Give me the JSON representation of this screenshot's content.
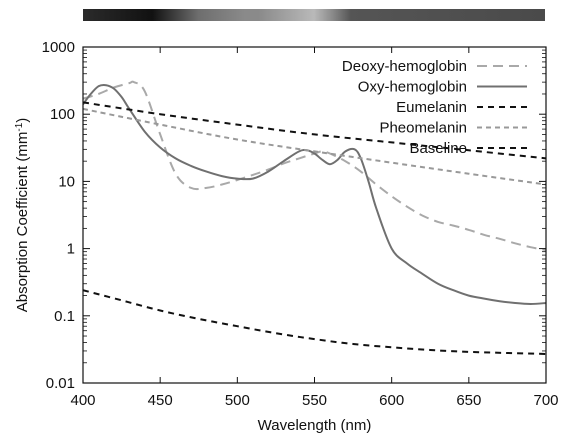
{
  "chart_data": {
    "type": "line",
    "xlabel": "Wavelength (nm)",
    "ylabel": "Absorption Coefficient (mm",
    "ylabel_superscript": "-1",
    "ylabel_suffix": ")",
    "xlim": [
      400,
      700
    ],
    "ylim": [
      0.01,
      1000
    ],
    "yscale": "log",
    "xticks": [
      "400",
      "450",
      "500",
      "550",
      "600",
      "650",
      "700"
    ],
    "yticks": [
      "0.01",
      "0.1",
      "1",
      "10",
      "100",
      "1000"
    ],
    "legend_position": "top-right",
    "grid": false,
    "spectrum_bar": {
      "description_colors": [
        "#2b2b2b",
        "#111111",
        "#6e6e6e",
        "#8a8a8a",
        "#b9b9b9",
        "#555555",
        "#4a4a4a"
      ]
    },
    "series": [
      {
        "name": "Deoxy-hemoglobin",
        "color": "#a9a9a9",
        "dash": "10,6",
        "width": 2,
        "x": [
          400,
          410,
          420,
          430,
          433,
          440,
          450,
          460,
          470,
          480,
          490,
          500,
          510,
          520,
          530,
          540,
          550,
          555,
          560,
          570,
          580,
          590,
          600,
          610,
          620,
          630,
          640,
          650,
          660,
          670,
          680,
          690,
          700
        ],
        "y": [
          170,
          200,
          250,
          290,
          300,
          220,
          50,
          13,
          8,
          8,
          9,
          10.5,
          12.5,
          15,
          18.5,
          22,
          26,
          28,
          26,
          20,
          14,
          9,
          6,
          4.2,
          3.1,
          2.5,
          2.2,
          1.9,
          1.6,
          1.4,
          1.2,
          1.05,
          0.95
        ]
      },
      {
        "name": "Oxy-hemoglobin",
        "color": "#707070",
        "dash": "",
        "width": 2,
        "x": [
          400,
          405,
          410,
          415,
          420,
          425,
          430,
          440,
          450,
          460,
          470,
          480,
          490,
          500,
          510,
          520,
          530,
          540,
          545,
          550,
          555,
          560,
          565,
          570,
          576,
          580,
          585,
          590,
          600,
          610,
          620,
          630,
          640,
          650,
          660,
          670,
          680,
          690,
          700
        ],
        "y": [
          140,
          200,
          260,
          270,
          240,
          180,
          120,
          55,
          32,
          22,
          17,
          14,
          12,
          11,
          11,
          14,
          20,
          28,
          29,
          26,
          21,
          18,
          21,
          28,
          30,
          22,
          10,
          4,
          1.0,
          0.6,
          0.42,
          0.3,
          0.24,
          0.2,
          0.18,
          0.165,
          0.155,
          0.15,
          0.155
        ]
      },
      {
        "name": "Eumelanin",
        "color": "#111111",
        "dash": "6,5",
        "width": 2,
        "x": [
          400,
          450,
          500,
          550,
          600,
          650,
          700
        ],
        "y": [
          150,
          100,
          70,
          50,
          38,
          29,
          22
        ]
      },
      {
        "name": "Pheomelanin",
        "color": "#999999",
        "dash": "5,4",
        "width": 2,
        "x": [
          400,
          450,
          500,
          550,
          600,
          650,
          700
        ],
        "y": [
          120,
          70,
          42,
          28,
          19,
          13,
          9
        ]
      },
      {
        "name": "Baseline",
        "color": "#111111",
        "dash": "6,5",
        "width": 2,
        "x": [
          400,
          425,
          450,
          475,
          500,
          525,
          550,
          575,
          600,
          625,
          650,
          675,
          700
        ],
        "y": [
          0.24,
          0.17,
          0.12,
          0.09,
          0.07,
          0.055,
          0.045,
          0.038,
          0.034,
          0.031,
          0.029,
          0.028,
          0.027
        ]
      }
    ]
  }
}
